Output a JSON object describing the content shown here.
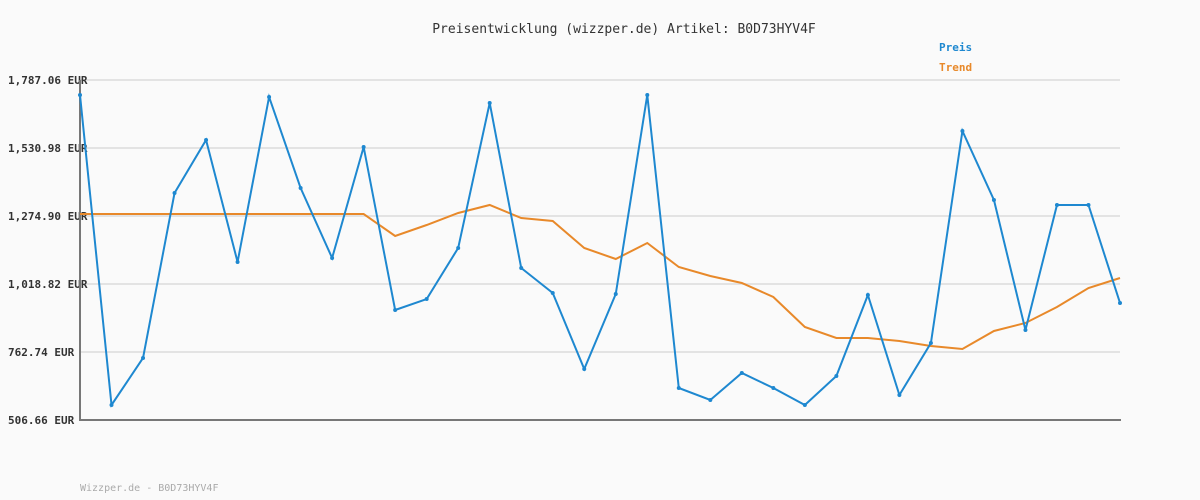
{
  "chart_data": {
    "type": "line",
    "title": "Preisentwicklung (wizzper.de) Artikel: B0D73HYV4F",
    "xlabel": "",
    "ylabel": "",
    "ylim": [
      506.66,
      1787.06
    ],
    "y_ticks": [
      "506.66 EUR",
      "762.74 EUR",
      "1,018.82 EUR",
      "1,274.90 EUR",
      "1,530.98 EUR",
      "1,787.06 EUR"
    ],
    "grid": true,
    "legend_position": "top-right",
    "series": [
      {
        "name": "Preis",
        "color": "#1e88d0",
        "values": [
          1730.6,
          563.2,
          740.2,
          1361.5,
          1561.1,
          1101.7,
          1723.1,
          1380.4,
          1116.8,
          1534.8,
          920.9,
          962.3,
          1154.4,
          1700.5,
          1079.1,
          985.0,
          698.7,
          981.2,
          1730.6,
          627.2,
          582.0,
          683.7,
          627.2,
          563.2,
          672.4,
          977.4,
          600.8,
          796.6,
          1595.0,
          1335.2,
          845.6,
          1316.4,
          1316.4,
          947.3
        ]
      },
      {
        "name": "Trend",
        "color": "#e8892a",
        "values": [
          1282.4,
          1282.4,
          1282.4,
          1282.4,
          1282.4,
          1282.4,
          1282.4,
          1282.4,
          1282.4,
          1282.4,
          1199.6,
          1241.0,
          1286.2,
          1316.4,
          1267.4,
          1256.1,
          1154.4,
          1113.0,
          1173.2,
          1082.9,
          1049.0,
          1022.6,
          969.9,
          856.9,
          815.5,
          815.5,
          804.2,
          785.3,
          774.0,
          841.9,
          872.0,
          932.2,
          1003.8,
          1041.4
        ]
      }
    ]
  },
  "footer": "Wizzper.de - B0D73HYV4F"
}
